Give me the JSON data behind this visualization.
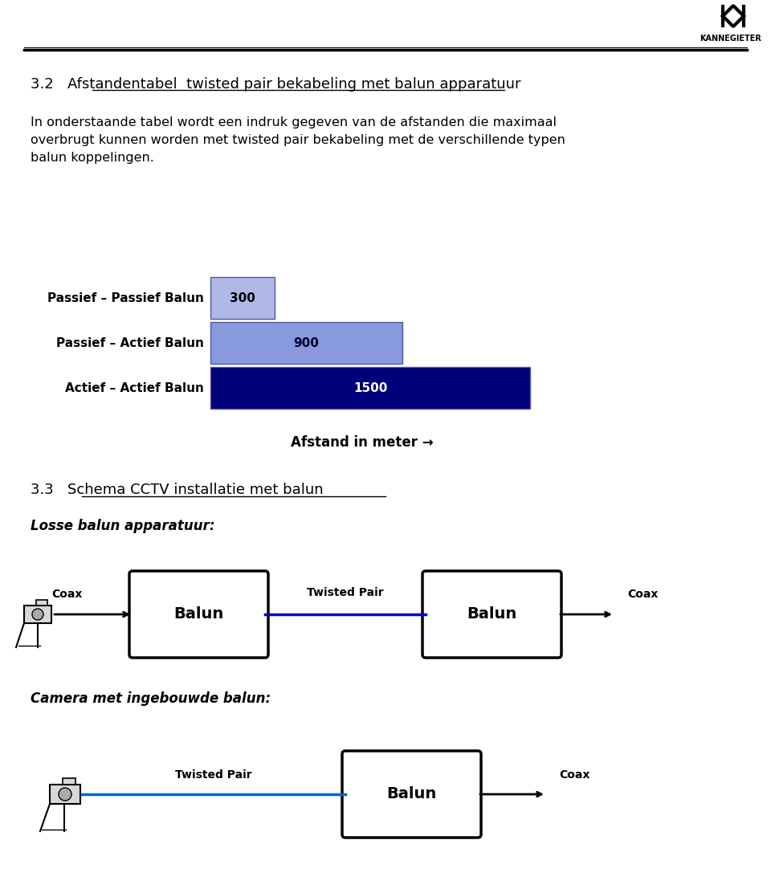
{
  "bg_color": "#ffffff",
  "header_line_color": "#000000",
  "logo_text": "KANNEGIETER",
  "section_title": "3.2   Afstandentabel  twisted pair bekabeling met balun apparatuur",
  "body_text": "In onderstaande tabel wordt een indruk gegeven van de afstanden die maximaal\noverbrugt kunnen worden met twisted pair bekabeling met de verschillende typen\nbalun koppelingen.",
  "bar_labels": [
    "Passief – Passief Balun",
    "Passief – Actief Balun",
    "Actief – Actief Balun"
  ],
  "bar_values": [
    300,
    900,
    1500
  ],
  "bar_colors": [
    "#b0b8e8",
    "#8899dd",
    "#00007a"
  ],
  "bar_text_colors": [
    "#000000",
    "#000033",
    "#ffffff"
  ],
  "bar_label_fontsize": 11,
  "bar_value_fontsize": 11,
  "axis_label": "Afstand in meter →",
  "section2_title": "3.3   Schema CCTV installatie met balun",
  "losse_label": "Losse balun apparatuur:",
  "camera_label": "Camera met ingebouwde balun:",
  "balun_box_color": "#ffffff",
  "balun_box_edge": "#000000",
  "balun_text": "Balun",
  "twisted_pair_label": "Twisted Pair",
  "coax_label": "Coax",
  "arrow_color": "#000000",
  "blue_line_color": "#0000cc",
  "blue_line2_color": "#0066cc"
}
